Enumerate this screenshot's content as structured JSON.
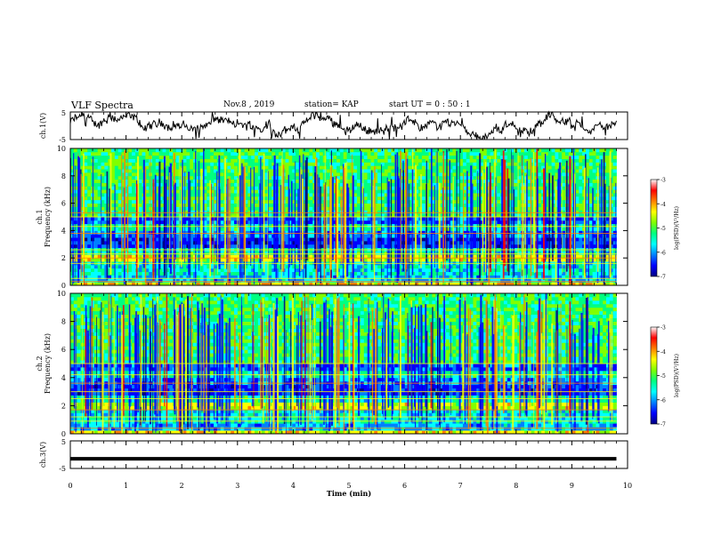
{
  "header": {
    "title": "VLF Spectra",
    "date": "Nov.8 , 2019",
    "station": "station= KAP",
    "start_time": "start UT = 0 : 50 : 1"
  },
  "colors": {
    "background": "#ffffff",
    "trace": "#000000",
    "colormap": [
      "#000080",
      "#0000ff",
      "#0080ff",
      "#00ffff",
      "#00ff80",
      "#80ff00",
      "#ffff00",
      "#ff8000",
      "#ff0000",
      "#ffffff"
    ]
  },
  "chart_data": [
    {
      "type": "line",
      "name": "ch1-waveform",
      "ylabel": "ch.1(V)",
      "xlim": [
        0,
        10
      ],
      "ylim": [
        -5,
        5
      ],
      "y_ticks": [
        "5",
        "-5"
      ],
      "x_data_end": 9.8,
      "description_level": "noisy waveform fluctuating roughly between -5 and 5 V"
    },
    {
      "type": "heatmap",
      "name": "ch1-spectrogram",
      "ylabel_line1": "ch.1",
      "ylabel_line2": "Frequency (kHz)",
      "xlim": [
        0,
        10
      ],
      "ylim": [
        0,
        10
      ],
      "y_ticks": [
        "0",
        "2",
        "4",
        "6",
        "8",
        "10"
      ],
      "x_data_end": 9.8,
      "colorbar": {
        "ticks": [
          "-3",
          "-4",
          "-5",
          "-6",
          "-7"
        ],
        "label": "log(PSD)(V²/Hz)",
        "range": [
          -7,
          -3
        ]
      }
    },
    {
      "type": "heatmap",
      "name": "ch2-spectrogram",
      "ylabel_line1": "ch.2",
      "ylabel_line2": "Frequency (kHz)",
      "xlim": [
        0,
        10
      ],
      "ylim": [
        0,
        10
      ],
      "y_ticks": [
        "0",
        "2",
        "4",
        "6",
        "8",
        "10"
      ],
      "x_data_end": 9.8,
      "colorbar": {
        "ticks": [
          "-3",
          "-4",
          "-5",
          "-6",
          "-7"
        ],
        "label": "log(PSD)(V²/Hz)",
        "range": [
          -7,
          -3
        ]
      }
    },
    {
      "type": "line",
      "name": "ch3-waveform",
      "ylabel": "ch.3(V)",
      "xlim": [
        0,
        10
      ],
      "ylim": [
        -5,
        5
      ],
      "y_ticks": [
        "5",
        "-5"
      ],
      "x_data_end": 9.8,
      "constant_value": -1.5
    }
  ],
  "x_axis": {
    "label": "Time (min)",
    "ticks": [
      "0",
      "1",
      "2",
      "3",
      "4",
      "5",
      "6",
      "7",
      "8",
      "9",
      "10"
    ],
    "range": [
      0,
      10
    ]
  }
}
